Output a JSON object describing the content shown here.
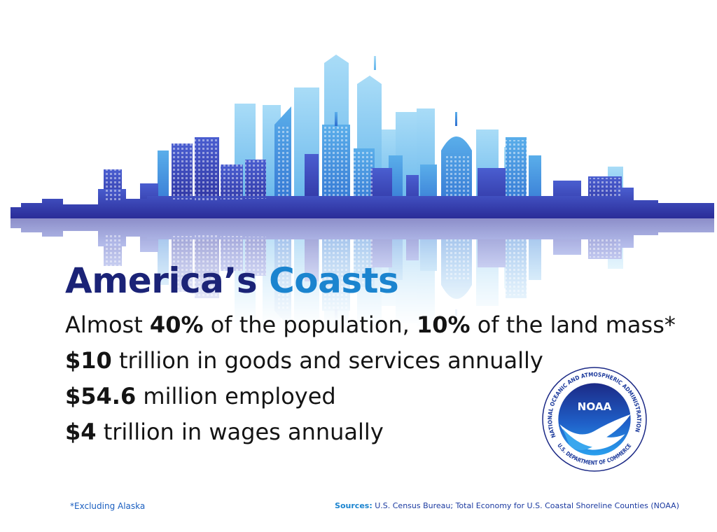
{
  "header": {
    "title_part1": "America’s",
    "title_part2": "Coasts"
  },
  "facts": [
    [
      {
        "text": "Almost ",
        "bold": false
      },
      {
        "text": "40%",
        "bold": true
      },
      {
        "text": " of the population, ",
        "bold": false
      },
      {
        "text": "10%",
        "bold": true
      },
      {
        "text": " of the land mass*",
        "bold": false
      }
    ],
    [
      {
        "text": "$10",
        "bold": true
      },
      {
        "text": " trillion in goods and services annually",
        "bold": false
      }
    ],
    [
      {
        "text": "$54.6",
        "bold": true
      },
      {
        "text": " million employed",
        "bold": false
      }
    ],
    [
      {
        "text": "$4",
        "bold": true
      },
      {
        "text": " trillion in wages annually",
        "bold": false
      }
    ]
  ],
  "footnote": "*Excluding Alaska",
  "sources": {
    "label": "Sources:",
    "text": " U.S. Census Bureau; Total Economy for U.S. Coastal Shoreline Counties (NOAA)"
  },
  "logo": {
    "acronym": "NOAA",
    "top_ring": "NATIONAL OCEANIC AND ATMOSPHERIC ADMINISTRATION",
    "bottom_ring": "U.S. DEPARTMENT OF COMMERCE"
  }
}
